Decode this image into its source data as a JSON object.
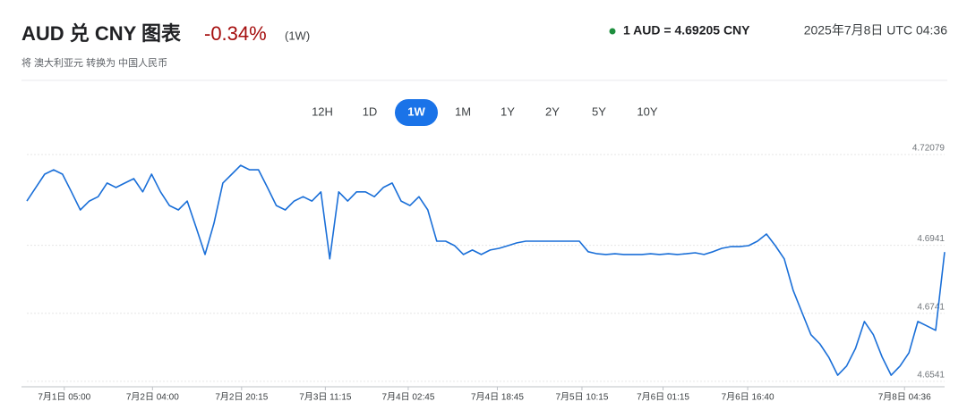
{
  "header": {
    "title": "AUD 兑 CNY 图表",
    "change": "-0.34%",
    "period": "(1W)",
    "subtitle": "将 澳大利亚元 转换为 中国人民币",
    "rate": "1 AUD = 4.69205 CNY",
    "timestamp": "2025年7月8日 UTC 04:36"
  },
  "ranges": {
    "options": [
      "12H",
      "1D",
      "1W",
      "1M",
      "1Y",
      "2Y",
      "5Y",
      "10Y"
    ],
    "active": "1W"
  },
  "chart_data": {
    "type": "line",
    "color": "#1a6fd8",
    "grid": true,
    "values": [
      4.7071,
      4.7111,
      4.715,
      4.7163,
      4.715,
      4.7098,
      4.7045,
      4.7071,
      4.7084,
      4.7124,
      4.7111,
      4.7124,
      4.7137,
      4.7098,
      4.715,
      4.7098,
      4.7058,
      4.7045,
      4.7071,
      4.6993,
      4.6914,
      4.7006,
      4.7124,
      4.715,
      4.7176,
      4.7163,
      4.7163,
      4.7111,
      4.7058,
      4.7045,
      4.7071,
      4.7084,
      4.7071,
      4.7098,
      4.6901,
      4.7098,
      4.7071,
      4.7098,
      4.7098,
      4.7084,
      4.7111,
      4.7124,
      4.7071,
      4.7058,
      4.7084,
      4.7045,
      4.6953,
      4.6953,
      4.694,
      4.6914,
      4.6927,
      4.6914,
      4.6927,
      4.6932,
      4.694,
      4.6948,
      4.6953,
      4.6953,
      4.6953,
      4.6953,
      4.6953,
      4.6953,
      4.6953,
      4.6922,
      4.6916,
      4.6914,
      4.6916,
      4.6914,
      4.6914,
      4.6914,
      4.6916,
      4.6914,
      4.6916,
      4.6914,
      4.6916,
      4.6919,
      4.6914,
      4.6922,
      4.6932,
      4.6937,
      4.6937,
      4.694,
      4.6953,
      4.6974,
      4.694,
      4.6901,
      4.6809,
      4.6743,
      4.6678,
      4.6651,
      4.6612,
      4.6559,
      4.6586,
      4.6638,
      4.6717,
      4.6678,
      4.6612,
      4.6559,
      4.6586,
      4.6625,
      4.6717,
      4.6704,
      4.6691,
      4.6921
    ],
    "xlim": [
      0,
      103
    ],
    "xticks": [
      {
        "value": 4.2,
        "label": "7月1日 05:00"
      },
      {
        "value": 14.1,
        "label": "7月2日 04:00"
      },
      {
        "value": 24.1,
        "label": "7月2日 20:15"
      },
      {
        "value": 33.5,
        "label": "7月3日 11:15"
      },
      {
        "value": 42.8,
        "label": "7月4日 02:45"
      },
      {
        "value": 52.8,
        "label": "7月4日 18:45"
      },
      {
        "value": 62.3,
        "label": "7月5日 10:15"
      },
      {
        "value": 71.4,
        "label": "7月6日 01:15"
      },
      {
        "value": 80.9,
        "label": "7月6日 16:40"
      },
      {
        "value": 98.5,
        "label": "7月8日 04:36"
      }
    ],
    "ylim": [
      4.6525,
      4.7242
    ],
    "yticks": [
      4.6541,
      4.6741,
      4.6941,
      4.72079
    ]
  }
}
